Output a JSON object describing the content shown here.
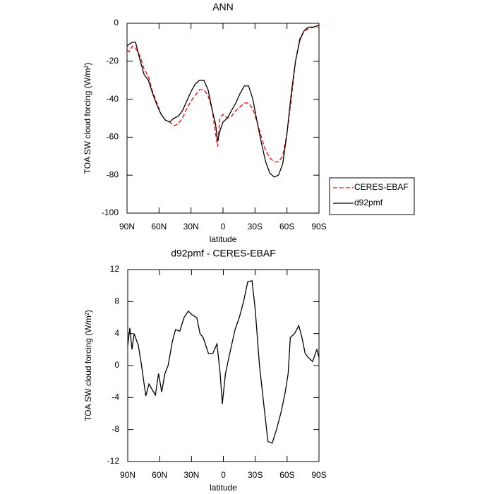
{
  "chart_data": [
    {
      "type": "line",
      "title": "ANN",
      "xlabel": "latitude",
      "ylabel": "TOA SW cloud forcing (W/m²)",
      "x": [
        90,
        88,
        85,
        82,
        78,
        74,
        70,
        66,
        62,
        58,
        54,
        50,
        46,
        42,
        38,
        34,
        30,
        26,
        22,
        18,
        14,
        10,
        7,
        5,
        3,
        0,
        -4,
        -8,
        -12,
        -16,
        -20,
        -24,
        -28,
        -32,
        -36,
        -40,
        -44,
        -48,
        -52,
        -56,
        -60,
        -64,
        -68,
        -72,
        -76,
        -80,
        -85,
        -90
      ],
      "series": [
        {
          "name": "CERES-EBAF",
          "color": "#ff0000",
          "linestyle": "dashed",
          "values": [
            -14,
            -15,
            -12,
            -13,
            -17,
            -24,
            -28,
            -36,
            -42,
            -48,
            -51,
            -52,
            -54,
            -53,
            -50,
            -45,
            -41,
            -38,
            -35,
            -35,
            -38,
            -46,
            -58,
            -65,
            -50,
            -48,
            -50,
            -49,
            -46,
            -44,
            -42,
            -42,
            -45,
            -52,
            -60,
            -67,
            -71,
            -73,
            -73,
            -70,
            -58,
            -40,
            -20,
            -8,
            -4,
            -3,
            -2,
            -2
          ]
        },
        {
          "name": "d92pmf",
          "color": "#000000",
          "linestyle": "solid",
          "values": [
            -12,
            -11,
            -10,
            -10,
            -19,
            -27,
            -30,
            -37,
            -43,
            -48,
            -51,
            -52,
            -50,
            -49,
            -46,
            -41,
            -36,
            -32,
            -30,
            -30,
            -35,
            -46,
            -53,
            -62,
            -57,
            -52,
            -50,
            -46,
            -42,
            -37,
            -33,
            -33,
            -40,
            -52,
            -63,
            -73,
            -79,
            -81,
            -80,
            -74,
            -58,
            -37,
            -20,
            -9,
            -4,
            -2,
            -2,
            -1
          ]
        }
      ],
      "xlim": [
        90,
        -90
      ],
      "xticks": [
        {
          "value": 90,
          "label": "90N"
        },
        {
          "value": 60,
          "label": "60N"
        },
        {
          "value": 30,
          "label": "30N"
        },
        0,
        {
          "value": -30,
          "label": "30S"
        },
        {
          "value": -60,
          "label": "60S"
        },
        {
          "value": -90,
          "label": "90S"
        }
      ],
      "ylim": [
        -100,
        0
      ],
      "yticks": [
        0,
        -20,
        -40,
        -60,
        -80,
        -100
      ]
    },
    {
      "type": "line",
      "title": "d92pmf - CERES-EBAF",
      "xlabel": "latitude",
      "ylabel": "TOA SW cloud forcing (W/m²)",
      "x": [
        90,
        88,
        86,
        84,
        80,
        77,
        73,
        70,
        67,
        64,
        61,
        58,
        55,
        52,
        48,
        45,
        41,
        37,
        33,
        29,
        25,
        22,
        19,
        14,
        10,
        6,
        3,
        1,
        -2,
        -6,
        -11,
        -15,
        -19,
        -23,
        -27,
        -30,
        -34,
        -39,
        -42,
        -46,
        -50,
        -54,
        -58,
        -61,
        -63,
        -67,
        -71,
        -74,
        -77,
        -80,
        -84,
        -88,
        -90
      ],
      "values": [
        2.5,
        4.7,
        2,
        4,
        2.5,
        0,
        -3.8,
        -2.3,
        -3,
        -3.7,
        -1,
        -3.3,
        -1,
        0,
        3,
        4.5,
        4.3,
        6,
        6.8,
        6.3,
        6,
        4,
        3.5,
        1.5,
        1.5,
        2.7,
        -1,
        -4.8,
        -1,
        1.5,
        4.5,
        6,
        8,
        10.5,
        10.6,
        7,
        0,
        -6,
        -9.5,
        -9.7,
        -8,
        -6,
        -3.5,
        -1,
        3.5,
        4,
        5,
        3.5,
        1.5,
        1,
        0.5,
        2,
        1
      ],
      "color": "#000000",
      "xlim": [
        90,
        -90
      ],
      "xticks": [
        {
          "value": 90,
          "label": "90N"
        },
        {
          "value": 60,
          "label": "60N"
        },
        {
          "value": 30,
          "label": "30N"
        },
        0,
        {
          "value": -30,
          "label": "30S"
        },
        {
          "value": -60,
          "label": "60S"
        },
        {
          "value": -90,
          "label": "90S"
        }
      ],
      "ylim": [
        -12,
        12
      ],
      "yticks": [
        -12,
        -8,
        -4,
        0,
        4,
        8,
        12
      ]
    }
  ]
}
